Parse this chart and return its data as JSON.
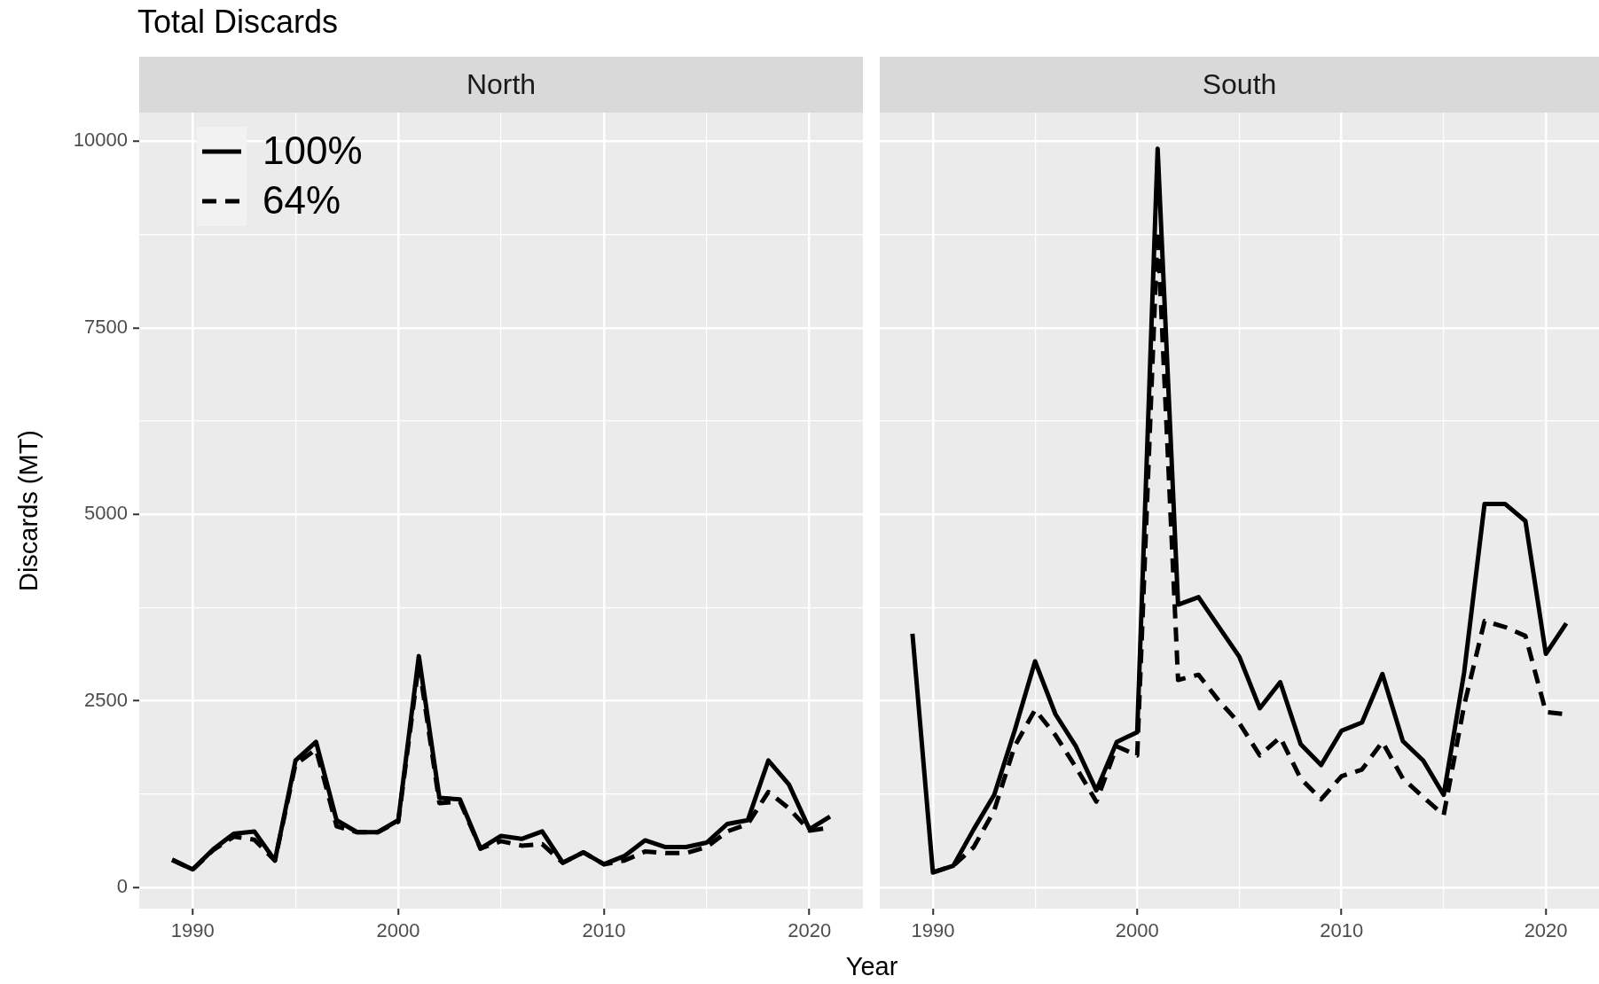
{
  "chart_data": [
    {
      "type": "line",
      "title": "Total Discards",
      "subtitle": "North",
      "xlabel": "Year",
      "ylabel": "Discards (MT)",
      "x": [
        1989,
        1990,
        1991,
        1992,
        1993,
        1994,
        1995,
        1996,
        1997,
        1998,
        1999,
        2000,
        2001,
        2002,
        2003,
        2004,
        2005,
        2006,
        2007,
        2008,
        2009,
        2010,
        2011,
        2012,
        2013,
        2014,
        2015,
        2016,
        2017,
        2018,
        2019,
        2020,
        2021
      ],
      "series": [
        {
          "name": "100%",
          "color": "#000000",
          "line_style": "solid",
          "values": [
            370,
            240,
            510,
            720,
            750,
            360,
            1700,
            1950,
            900,
            740,
            740,
            900,
            3100,
            1200,
            1180,
            520,
            690,
            650,
            750,
            330,
            470,
            310,
            420,
            630,
            540,
            540,
            600,
            850,
            900,
            1700,
            1380,
            780,
            950
          ]
        },
        {
          "name": "64%",
          "color": "#000000",
          "line_style": "dashed",
          "values": [
            370,
            240,
            500,
            680,
            640,
            360,
            1650,
            1850,
            820,
            740,
            740,
            880,
            3000,
            1130,
            1150,
            520,
            620,
            560,
            580,
            330,
            470,
            310,
            360,
            480,
            460,
            460,
            540,
            750,
            850,
            1280,
            1060,
            760,
            800
          ]
        }
      ],
      "xlim": [
        1987.4,
        2022.6
      ],
      "ylim": [
        -285,
        10385
      ],
      "xticks": [
        1990,
        {
          "value": 1995,
          "label": null
        },
        2000,
        {
          "value": 2005,
          "label": null
        },
        2010,
        {
          "value": 2015,
          "label": null
        },
        2020
      ],
      "yticks": [
        0,
        {
          "value": 1250,
          "label": null
        },
        2500,
        {
          "value": 3750,
          "label": null
        },
        5000,
        {
          "value": 6250,
          "label": null
        },
        7500,
        {
          "value": 8750,
          "label": null
        },
        10000
      ],
      "grid": true,
      "legend": "top left"
    },
    {
      "type": "line",
      "subtitle": "South",
      "x": [
        1989,
        1990,
        1991,
        1992,
        1993,
        1994,
        1995,
        1996,
        1997,
        1998,
        1999,
        2000,
        2001,
        2002,
        2003,
        2004,
        2005,
        2006,
        2007,
        2008,
        2009,
        2010,
        2011,
        2012,
        2013,
        2014,
        2015,
        2016,
        2017,
        2018,
        2019,
        2020,
        2021
      ],
      "series": [
        {
          "color": "#000000",
          "line_style": "solid",
          "values": [
            3400,
            200,
            290,
            780,
            1240,
            2100,
            3030,
            2320,
            1890,
            1300,
            1950,
            2080,
            9900,
            3790,
            3890,
            3490,
            3090,
            2400,
            2750,
            1920,
            1640,
            2100,
            2210,
            2860,
            1960,
            1700,
            1240,
            2880,
            5140,
            5140,
            4910,
            3130,
            3540
          ]
        },
        {
          "color": "#000000",
          "line_style": "dashed",
          "values": [
            null,
            200,
            290,
            540,
            1030,
            1890,
            2380,
            2040,
            1610,
            1150,
            1890,
            1770,
            8800,
            2780,
            2850,
            2500,
            2200,
            1770,
            2010,
            1460,
            1180,
            1490,
            1580,
            1950,
            1460,
            1210,
            970,
            2440,
            3570,
            3490,
            3370,
            2350,
            2320
          ]
        }
      ],
      "xlim": [
        1987.4,
        2022.6
      ],
      "ylim": [
        -285,
        10385
      ],
      "xticks": [
        1990,
        {
          "value": 1995,
          "label": null
        },
        2000,
        {
          "value": 2005,
          "label": null
        },
        2010,
        {
          "value": 2015,
          "label": null
        },
        2020
      ],
      "yticks": [
        0,
        {
          "value": 1250,
          "label": null
        },
        2500,
        {
          "value": 3750,
          "label": null
        },
        5000,
        {
          "value": 6250,
          "label": null
        },
        7500,
        {
          "value": 8750,
          "label": null
        },
        10000
      ],
      "grid": true,
      "tick_labels": "x"
    }
  ]
}
